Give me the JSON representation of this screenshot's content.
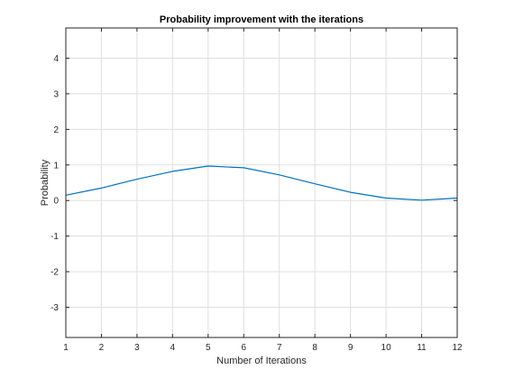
{
  "chart_data": {
    "type": "line",
    "title": "Probability improvement with the iterations",
    "xlabel": "Number of Iterations",
    "ylabel": "Probability",
    "xlim": [
      1,
      12
    ],
    "ylim": [
      -3.85,
      4.85
    ],
    "xticks": [
      1,
      2,
      3,
      4,
      5,
      6,
      7,
      8,
      9,
      10,
      11,
      12
    ],
    "yticks": [
      -3,
      -2,
      -1,
      0,
      1,
      2,
      3,
      4
    ],
    "grid": true,
    "series": [
      {
        "color": "#0072BD",
        "x": [
          1,
          2,
          3,
          4,
          5,
          6,
          7,
          8,
          9,
          10,
          11,
          12
        ],
        "values": [
          0.15,
          0.35,
          0.6,
          0.82,
          0.97,
          0.92,
          0.72,
          0.47,
          0.23,
          0.07,
          0.01,
          0.07
        ]
      }
    ]
  }
}
